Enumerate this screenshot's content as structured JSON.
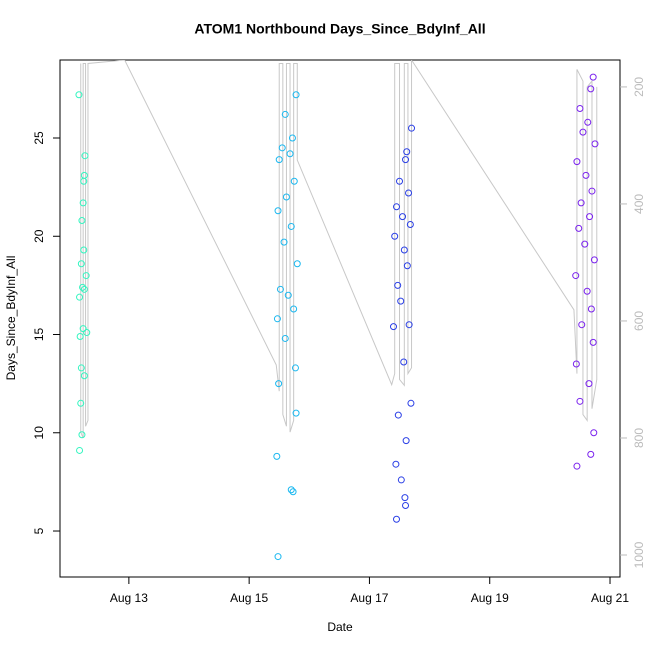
{
  "chart_data": {
    "type": "scatter",
    "title": "ATOM1 Northbound Days_Since_BdyInf_All",
    "x_label": "Date",
    "y_label": "Days_Since_BdyInf_All",
    "xlim": [
      11.855,
      21.166
    ],
    "xticks": [
      {
        "value": 13,
        "label": "Aug 13"
      },
      {
        "value": 15,
        "label": "Aug 15"
      },
      {
        "value": 17,
        "label": "Aug 17"
      },
      {
        "value": 19,
        "label": "Aug 19"
      },
      {
        "value": 21,
        "label": "Aug 21"
      }
    ],
    "ylim": [
      2.66,
      28.97
    ],
    "yticks": [
      5,
      10,
      15,
      20,
      25
    ],
    "y2lim": [
      1037.6,
      154
    ],
    "y2ticks": [
      200,
      400,
      600,
      800,
      1000
    ],
    "series": [
      {
        "color": "#33f5c0",
        "x": [
          12.17,
          12.25,
          12.27,
          12.26,
          12.24,
          12.22,
          12.25,
          12.21,
          12.23,
          12.26,
          12.18,
          12.29,
          12.24,
          12.3,
          12.19,
          12.21,
          12.26,
          12.2,
          12.22,
          12.18
        ],
        "values": [
          27.2,
          22.8,
          24.1,
          23.1,
          21.7,
          20.8,
          19.3,
          18.6,
          17.4,
          17.3,
          16.9,
          18.0,
          15.3,
          15.1,
          14.9,
          13.3,
          12.9,
          11.5,
          9.9,
          9.1
        ]
      },
      {
        "color": "#1ab8f0",
        "x": [
          15.78,
          15.6,
          15.72,
          15.55,
          15.68,
          15.5,
          15.75,
          15.62,
          15.48,
          15.7,
          15.58,
          15.8,
          15.52,
          15.65,
          15.74,
          15.47,
          15.6,
          15.77,
          15.49,
          15.78,
          15.46,
          15.7,
          15.48,
          15.73
        ],
        "values": [
          27.2,
          26.2,
          25.0,
          24.5,
          24.2,
          23.9,
          22.8,
          22.0,
          21.3,
          20.5,
          19.7,
          18.6,
          17.3,
          17.0,
          16.3,
          15.8,
          14.8,
          13.3,
          12.5,
          11.0,
          8.8,
          7.1,
          3.7,
          7.0
        ]
      },
      {
        "color": "#2a3fe6",
        "x": [
          17.7,
          17.62,
          17.6,
          17.5,
          17.65,
          17.45,
          17.55,
          17.68,
          17.42,
          17.58,
          17.63,
          17.47,
          17.52,
          17.66,
          17.4,
          17.57,
          17.69,
          17.48,
          17.61,
          17.44,
          17.53,
          17.59,
          17.45,
          17.6
        ],
        "values": [
          25.5,
          24.3,
          23.9,
          22.8,
          22.2,
          21.5,
          21.0,
          20.6,
          20.0,
          19.3,
          18.5,
          17.5,
          16.7,
          15.5,
          15.4,
          13.6,
          11.5,
          10.9,
          9.6,
          8.4,
          7.6,
          6.7,
          5.6,
          6.3
        ]
      },
      {
        "color": "#7a22ee",
        "x": [
          20.72,
          20.68,
          20.5,
          20.63,
          20.55,
          20.75,
          20.45,
          20.6,
          20.7,
          20.52,
          20.66,
          20.48,
          20.58,
          20.74,
          20.43,
          20.62,
          20.69,
          20.53,
          20.72,
          20.44,
          20.65,
          20.5,
          20.73,
          20.45,
          20.68
        ],
        "values": [
          28.1,
          27.5,
          26.5,
          25.8,
          25.3,
          24.7,
          23.8,
          23.1,
          22.3,
          21.7,
          21.0,
          20.4,
          19.6,
          18.8,
          18.0,
          17.2,
          16.3,
          15.5,
          14.6,
          13.5,
          12.5,
          11.6,
          10.0,
          8.3,
          8.9
        ]
      },
      {
        "type": "line",
        "axis": "y2",
        "color": "#c8c8c8",
        "x": [
          12.2,
          12.2,
          12.24,
          12.24,
          12.28,
          12.28,
          12.32,
          12.32,
          12.93,
          15.45,
          15.5,
          15.5,
          15.56,
          15.56,
          15.62,
          15.62,
          15.68,
          15.68,
          15.74,
          15.74,
          15.8,
          15.8,
          17.37,
          17.42,
          17.42,
          17.5,
          17.5,
          17.58,
          17.58,
          17.64,
          17.64,
          17.7,
          17.7,
          20.4,
          20.45,
          20.45,
          20.55,
          20.55,
          20.62,
          20.62,
          20.7,
          20.7,
          20.78,
          20.78
        ],
        "values": [
          160,
          790,
          800,
          160,
          160,
          780,
          770,
          160,
          154,
          675,
          720,
          160,
          160,
          760,
          780,
          160,
          160,
          790,
          770,
          160,
          160,
          325,
          709,
          690,
          160,
          160,
          700,
          710,
          160,
          160,
          690,
          680,
          154,
          581,
          690,
          170,
          190,
          760,
          770,
          200,
          190,
          750,
          700,
          200
        ]
      }
    ]
  }
}
